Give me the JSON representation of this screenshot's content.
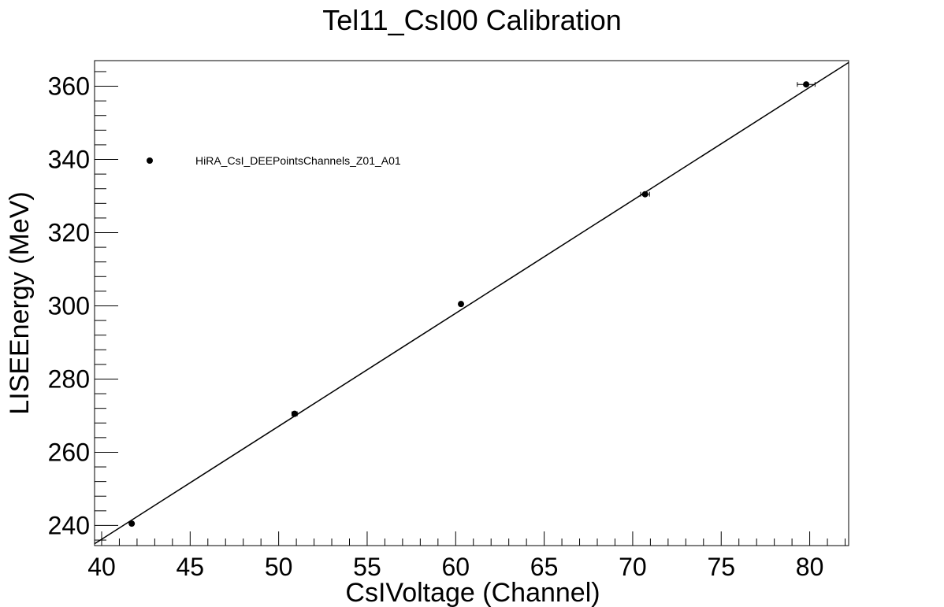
{
  "chart_data": {
    "type": "scatter",
    "title": "Tel11_CsI00 Calibration",
    "xlabel": "CsIVoltage (Channel)",
    "ylabel": "LISEEnergy (MeV)",
    "xlim": [
      39.6,
      82.2
    ],
    "ylim": [
      234.5,
      367
    ],
    "x_ticks": [
      40,
      45,
      50,
      55,
      60,
      65,
      70,
      75,
      80
    ],
    "y_ticks": [
      240,
      260,
      280,
      300,
      320,
      340,
      360
    ],
    "x_minor_step": 1,
    "y_minor_step": 4,
    "grid": false,
    "legend": {
      "position": "top-left",
      "entries": [
        "HiRA_CsI_DEEPointsChannels_Z01_A01"
      ]
    },
    "series": [
      {
        "name": "HiRA_CsI_DEEPointsChannels_Z01_A01",
        "x": [
          41.7,
          50.9,
          60.3,
          70.7,
          79.8
        ],
        "y": [
          240.5,
          270.5,
          300.5,
          330.5,
          360.5
        ],
        "x_err": [
          0.1,
          0.15,
          0.1,
          0.25,
          0.5
        ]
      }
    ],
    "fit": {
      "x": [
        39.6,
        82.2
      ],
      "y": [
        235.0,
        366.5
      ]
    }
  }
}
